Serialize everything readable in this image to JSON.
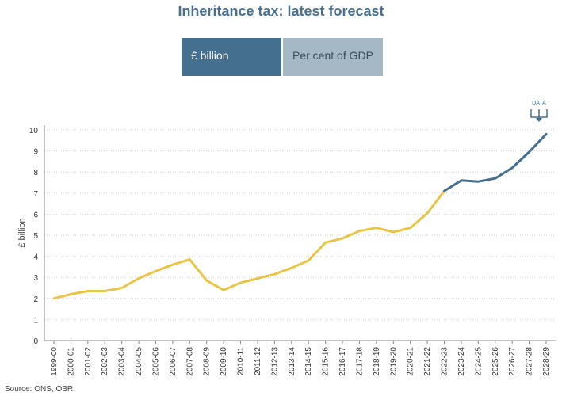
{
  "title": "Inheritance tax: latest forecast",
  "tabs": [
    {
      "label": "£ billion",
      "active": true
    },
    {
      "label": "Per cent of GDP",
      "active": false
    }
  ],
  "download": {
    "label": "DATA"
  },
  "source": "Source: ONS, OBR",
  "colors": {
    "outturn": "#e8c547",
    "forecast": "#456f8e",
    "title": "#4a6f8f",
    "grid": "#d0d0d0"
  },
  "chart_data": {
    "type": "line",
    "ylabel": "£ billion",
    "ylim": [
      0,
      10
    ],
    "yticks": [
      0,
      1,
      2,
      3,
      4,
      5,
      6,
      7,
      8,
      9,
      10
    ],
    "grid": "horizontal dotted",
    "legend": "none",
    "categories": [
      "1999-00",
      "2000-01",
      "2001-02",
      "2002-03",
      "2003-04",
      "2004-05",
      "2005-06",
      "2006-07",
      "2007-08",
      "2008-09",
      "2009-10",
      "2010-11",
      "2011-12",
      "2012-13",
      "2013-14",
      "2014-15",
      "2015-16",
      "2016-17",
      "2017-18",
      "2018-19",
      "2019-20",
      "2020-21",
      "2021-22",
      "2022-23",
      "2023-24",
      "2024-25",
      "2025-26",
      "2026-27",
      "2027-28",
      "2028-29"
    ],
    "series": [
      {
        "values": [
          2.0,
          2.2,
          2.35,
          2.35,
          2.5,
          2.95,
          3.3,
          3.6,
          3.85,
          2.85,
          2.4,
          2.75,
          2.95,
          3.15,
          3.45,
          3.8,
          4.65,
          4.85,
          5.2,
          5.35,
          5.15,
          5.35,
          6.05,
          7.1,
          null,
          null,
          null,
          null,
          null,
          null
        ]
      },
      {
        "values": [
          null,
          null,
          null,
          null,
          null,
          null,
          null,
          null,
          null,
          null,
          null,
          null,
          null,
          null,
          null,
          null,
          null,
          null,
          null,
          null,
          null,
          null,
          null,
          7.1,
          7.6,
          7.55,
          7.7,
          8.2,
          8.95,
          9.8
        ]
      }
    ]
  }
}
